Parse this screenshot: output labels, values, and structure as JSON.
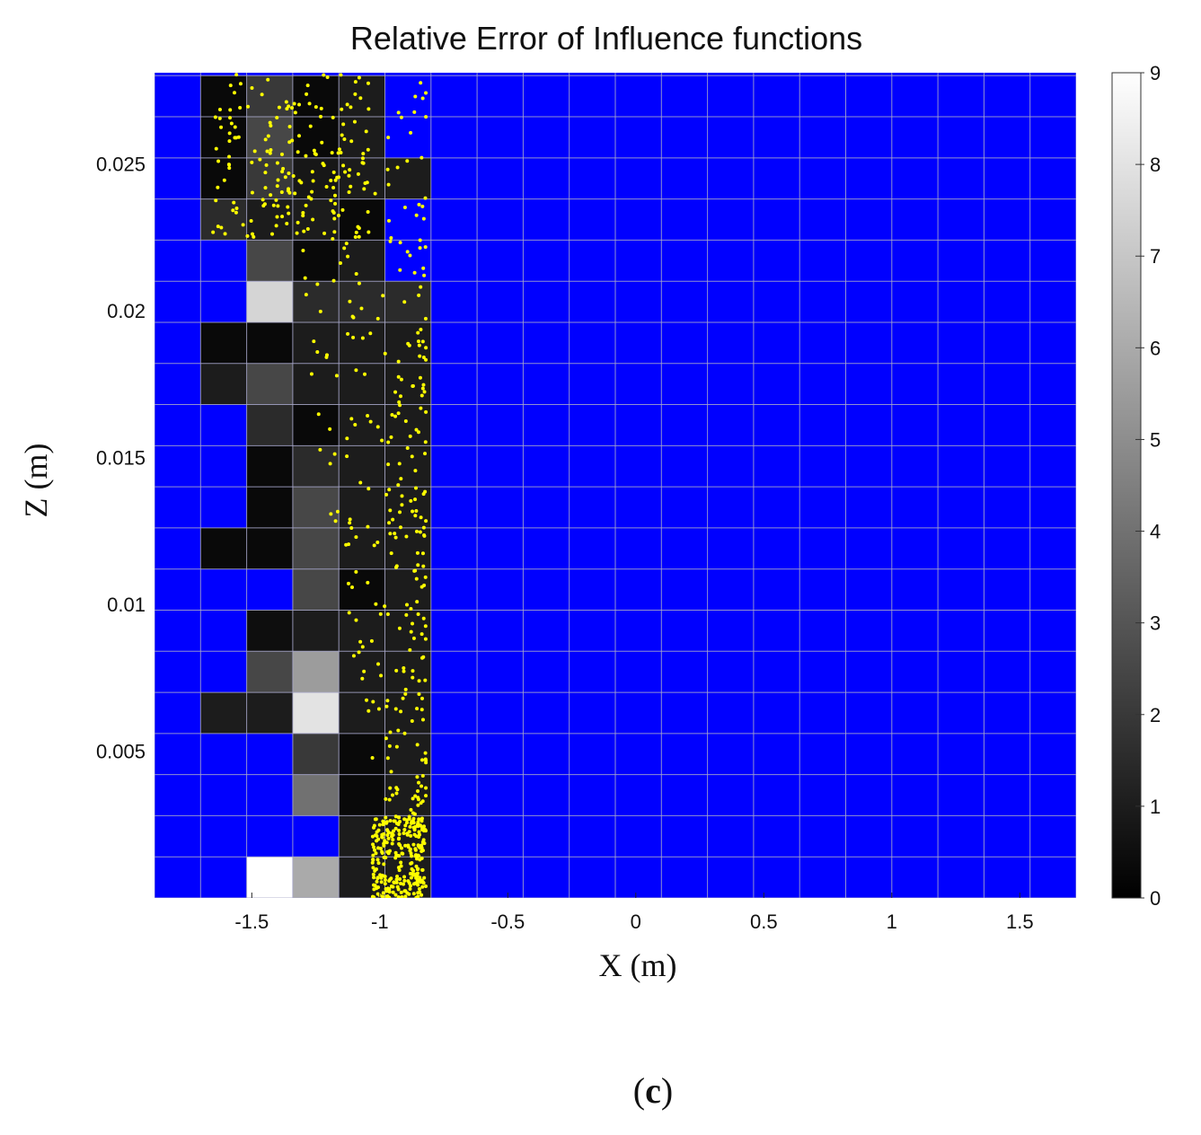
{
  "chart_data": {
    "type": "heatmap",
    "title": "Relative Error of Influence functions",
    "xlabel": "X (m)",
    "ylabel": "Z (m)",
    "caption": "(c)",
    "caption_letter": "c",
    "x_ticks": [
      "-1.5",
      "-1",
      "-0.5",
      "0",
      "0.5",
      "1",
      "1.5"
    ],
    "x_tick_values": [
      -1.5,
      -1,
      -0.5,
      0,
      0.5,
      1,
      1.5
    ],
    "y_ticks": [
      "0.005",
      "0.01",
      "0.015",
      "0.02",
      "0.025"
    ],
    "y_tick_values": [
      0.005,
      0.01,
      0.015,
      0.02,
      0.025
    ],
    "xlim": [
      -1.88,
      1.72
    ],
    "ylim": [
      0,
      0.0281
    ],
    "grid": true,
    "colorbar": {
      "ticks": [
        "0",
        "1",
        "2",
        "3",
        "4",
        "5",
        "6",
        "7",
        "8",
        "9"
      ],
      "range": [
        0,
        9
      ],
      "colormap": "gray"
    },
    "colors": {
      "empty_cell": "#0000ff",
      "grid_line": "#a8a8c8",
      "points": "#ffff00"
    },
    "grid_cells": {
      "x_start": -1.88,
      "x_step": 0.18,
      "columns": 20,
      "z_step": 0.0014,
      "rows": 20
    },
    "cell_values_note_rows_top_to_bottom": true,
    "cells": [
      [
        null,
        0.3,
        2.0,
        0.3,
        1.0
      ],
      [
        null,
        0.3,
        2.5,
        0.3,
        1.0
      ],
      [
        null,
        0.3,
        2.0,
        0.8,
        1.0,
        1.0
      ],
      [
        null,
        1.5,
        1.0,
        1.0,
        0.3
      ],
      [
        null,
        null,
        2.5,
        0.3,
        1.0
      ],
      [
        null,
        null,
        7.5,
        1.5,
        1.5,
        1.5
      ],
      [
        null,
        0.3,
        0.3,
        1.0,
        1.0,
        1.0
      ],
      [
        null,
        1.0,
        2.5,
        1.0,
        1.0,
        1.0
      ],
      [
        null,
        null,
        1.5,
        0.3,
        1.0,
        1.0
      ],
      [
        null,
        null,
        0.3,
        1.5,
        1.0,
        1.0
      ],
      [
        null,
        null,
        0.3,
        2.5,
        1.0,
        1.0
      ],
      [
        null,
        0.3,
        0.3,
        2.5,
        1.0,
        1.0
      ],
      [
        null,
        null,
        null,
        2.5,
        0.3,
        1.0
      ],
      [
        null,
        null,
        0.5,
        1.0,
        1.0,
        1.0
      ],
      [
        null,
        null,
        2.5,
        5.5,
        1.0,
        1.0
      ],
      [
        null,
        1.0,
        1.0,
        8.0,
        1.0,
        1.0
      ],
      [
        null,
        null,
        null,
        2.0,
        0.3,
        1.0
      ],
      [
        null,
        null,
        null,
        4.0,
        0.3,
        1.0
      ],
      [
        null,
        null,
        null,
        null,
        1.0,
        1.0
      ],
      [
        null,
        null,
        9.0,
        6.0,
        1.0,
        1.0
      ]
    ]
  }
}
